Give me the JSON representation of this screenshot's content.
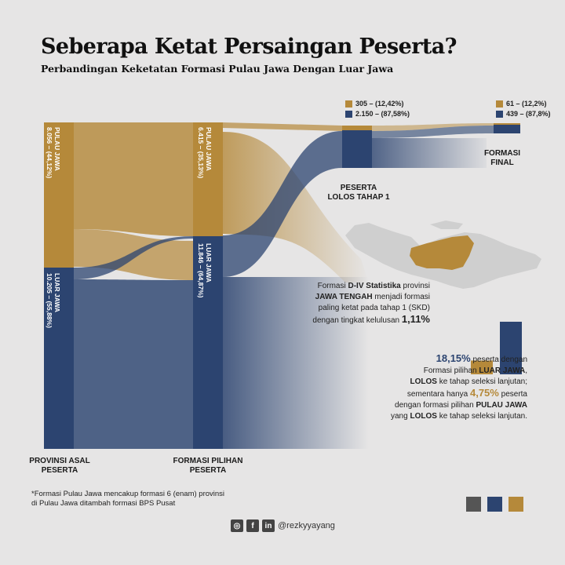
{
  "title": "Seberapa Ketat Persaingan Peserta?",
  "subtitle": "Perbandingan Keketatan Formasi Pulau Jawa Dengan Luar Jawa",
  "colors": {
    "jawa": "#b5893a",
    "luar_jawa": "#2c4470",
    "dark": "#555555",
    "background": "#e6e5e5"
  },
  "nodes": {
    "asal_jawa_label": "PULAU JAWA",
    "asal_jawa_value": "8.056 – (44,12%)",
    "asal_luar_label": "LUAR JAWA",
    "asal_luar_value": "10.205 – (55,88%)",
    "pilihan_jawa_label": "PULAU JAWA",
    "pilihan_jawa_value": "6.415 – (35,13%)",
    "pilihan_luar_label": "LUAR JAWA",
    "pilihan_luar_value": "11.846 – (64,87%)"
  },
  "stages": {
    "asal": "PROVINSI ASAL\nPESERTA",
    "pilihan": "FORMASI PILIHAN\nPESERTA",
    "lolos": "PESERTA\nLOLOS TAHAP 1",
    "final": "FORMASI\nFINAL"
  },
  "legend_lolos": [
    {
      "text": "305 – (12,42%)",
      "color": "#b5893a"
    },
    {
      "text": "2.150 – (87,58%)",
      "color": "#2c4470"
    }
  ],
  "legend_final": [
    {
      "text": "61 – (12,2%)",
      "color": "#b5893a"
    },
    {
      "text": "439 – (87,8%)",
      "color": "#2c4470"
    }
  ],
  "annotation1": {
    "l1a": "Formasi ",
    "l1b": "D-IV Statistika",
    "l1c": " provinsi",
    "l2a": "JAWA TENGAH",
    "l2b": " menjadi formasi",
    "l3": "paling ketat pada tahap 1 (SKD)",
    "l4a": "dengan tingkat kelulusan ",
    "l4b": "1,11%"
  },
  "annotation2": {
    "l1a": "18,15%",
    "l1b": " peserta dengan",
    "l2a": "Formasi pilihan ",
    "l2b": "LUAR JAWA",
    "l3a": "LOLOS",
    "l3b": " ke tahap seleksi lanjutan;",
    "l4a": "sementara hanya ",
    "l4b": "4,75%",
    "l4c": " peserta",
    "l5a": "dengan formasi pilihan ",
    "l5b": "PULAU JAWA",
    "l6a": "yang ",
    "l6b": "LOLOS",
    "l6c": " ke tahap seleksi lanjutan."
  },
  "footnote": {
    "line1": "*Formasi Pulau Jawa mencakup formasi 6 (enam) provinsi",
    "line2": "di Pulau Jawa ditambah formasi BPS Pusat"
  },
  "social": {
    "handle": "@rezkyyayang",
    "icons": [
      "instagram-icon",
      "facebook-icon",
      "linkedin-icon"
    ]
  },
  "chart_data": {
    "type": "sankey",
    "stages": [
      "PROVINSI ASAL PESERTA",
      "FORMASI PILIHAN PESERTA",
      "PESERTA LOLOS TAHAP 1",
      "FORMASI FINAL"
    ],
    "nodes": [
      {
        "stage": "asal",
        "name": "PULAU JAWA",
        "value": 8056,
        "percent": 44.12
      },
      {
        "stage": "asal",
        "name": "LUAR JAWA",
        "value": 10205,
        "percent": 55.88
      },
      {
        "stage": "pilihan",
        "name": "PULAU JAWA",
        "value": 6415,
        "percent": 35.13
      },
      {
        "stage": "pilihan",
        "name": "LUAR JAWA",
        "value": 11846,
        "percent": 64.87
      },
      {
        "stage": "lolos",
        "name": "PULAU JAWA",
        "value": 305,
        "percent": 12.42
      },
      {
        "stage": "lolos",
        "name": "LUAR JAWA",
        "value": 2150,
        "percent": 87.58
      },
      {
        "stage": "final",
        "name": "PULAU JAWA",
        "value": 61,
        "percent": 12.2
      },
      {
        "stage": "final",
        "name": "LUAR JAWA",
        "value": 439,
        "percent": 87.8
      }
    ],
    "rates": {
      "lolos_luar_jawa_percent": 18.15,
      "lolos_pulau_jawa_percent": 4.75,
      "d4_statistika_jateng_percent": 1.11
    },
    "mini_bars": [
      {
        "name": "PULAU JAWA",
        "value": 4.75
      },
      {
        "name": "LUAR JAWA",
        "value": 18.15
      }
    ]
  }
}
